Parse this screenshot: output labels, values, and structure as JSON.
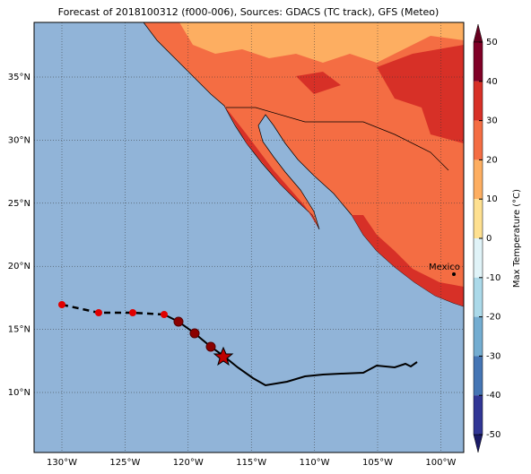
{
  "title": "Forecast of 2018100312 (f000-006), Sources: GDACS (TC track), GFS (Meteo)",
  "map": {
    "lon_ticks": [
      "130°W",
      "125°W",
      "120°W",
      "115°W",
      "110°W",
      "105°W",
      "100°W"
    ],
    "lat_ticks": [
      "35°N",
      "30°N",
      "25°N",
      "20°N",
      "15°N",
      "10°N"
    ],
    "city": "Mexico Cit"
  },
  "colorbar": {
    "label": "Max Temperature (°C)",
    "ticks": [
      50,
      40,
      30,
      20,
      10,
      0,
      -10,
      -20,
      -30,
      -40,
      -50
    ]
  }
}
